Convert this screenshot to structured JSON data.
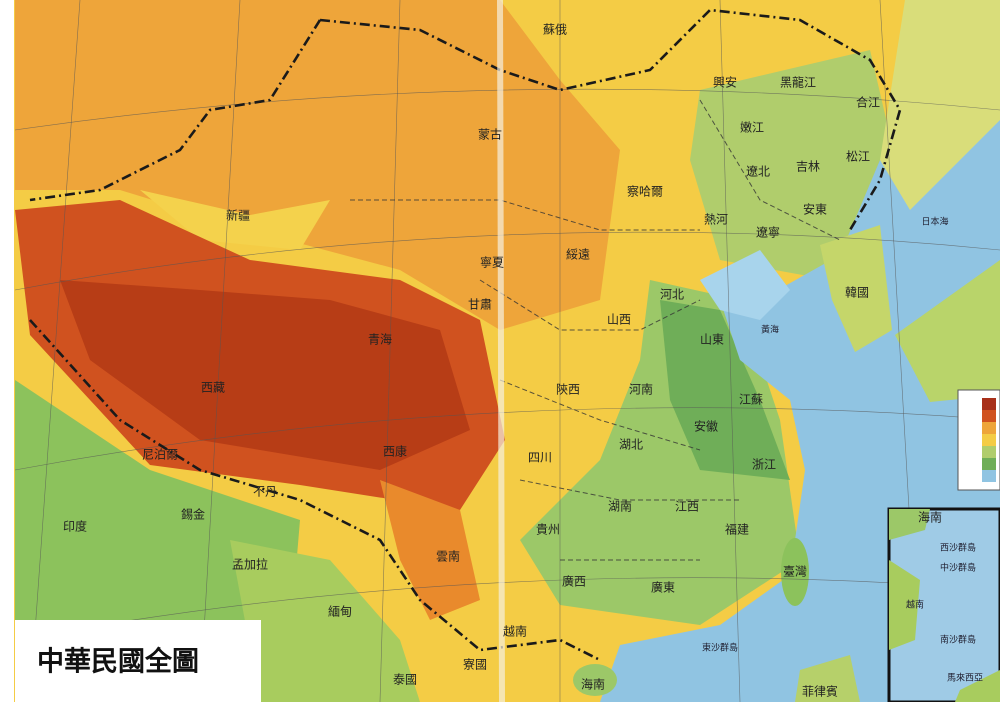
{
  "title": "中華民國全圖",
  "labels": [
    "蘇俄",
    "興安",
    "黑龍江",
    "合江",
    "嫩江",
    "蒙古",
    "松江",
    "吉林",
    "遼北",
    "察哈爾",
    "安東",
    "新疆",
    "熱河",
    "遼寧",
    "綏遠",
    "寧夏",
    "甘肅",
    "河北",
    "韓國",
    "山西",
    "青海",
    "山東",
    "西藏",
    "陝西",
    "河南",
    "江蘇",
    "安徽",
    "湖北",
    "西康",
    "四川",
    "浙江",
    "錫金",
    "印度",
    "湖南",
    "江西",
    "貴州",
    "福建",
    "雲南",
    "孟加拉",
    "臺灣",
    "廣西",
    "廣東",
    "緬甸",
    "越南",
    "寮國",
    "泰國",
    "海南",
    "菲律賓",
    "尼泊爾",
    "不丹"
  ],
  "small_labels": [
    "日本海",
    "黃海",
    "東沙群島"
  ],
  "inset": {
    "title": "海南",
    "labels": [
      "西沙群島",
      "中沙群島",
      "越南",
      "南沙群島",
      "馬來西亞"
    ]
  }
}
